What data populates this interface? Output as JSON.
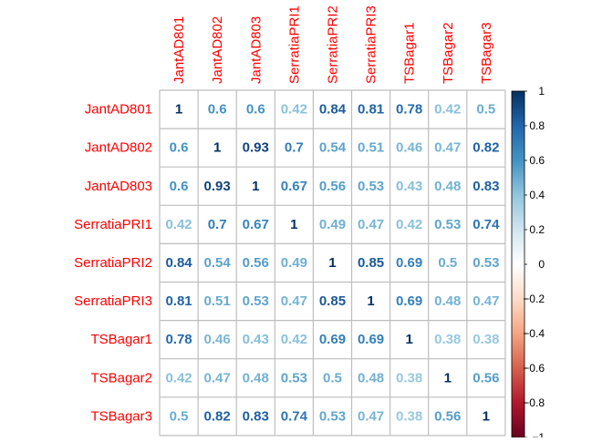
{
  "chart_data": {
    "type": "heatmap",
    "title": "",
    "variables": [
      "JantAD801",
      "JantAD802",
      "JantAD803",
      "SerratiaPRI1",
      "SerratiaPRI2",
      "SerratiaPRI3",
      "TSBagar1",
      "TSBagar2",
      "TSBagar3"
    ],
    "values": [
      [
        1,
        0.6,
        0.6,
        0.42,
        0.84,
        0.81,
        0.78,
        0.42,
        0.5
      ],
      [
        0.6,
        1,
        0.93,
        0.7,
        0.54,
        0.51,
        0.46,
        0.47,
        0.82
      ],
      [
        0.6,
        0.93,
        1,
        0.67,
        0.56,
        0.53,
        0.43,
        0.48,
        0.83
      ],
      [
        0.42,
        0.7,
        0.67,
        1,
        0.49,
        0.47,
        0.42,
        0.53,
        0.74
      ],
      [
        0.84,
        0.54,
        0.56,
        0.49,
        1,
        0.85,
        0.69,
        0.5,
        0.53
      ],
      [
        0.81,
        0.51,
        0.53,
        0.47,
        0.85,
        1,
        0.69,
        0.48,
        0.47
      ],
      [
        0.78,
        0.46,
        0.43,
        0.42,
        0.69,
        0.69,
        1,
        0.38,
        0.38
      ],
      [
        0.42,
        0.47,
        0.48,
        0.53,
        0.5,
        0.48,
        0.38,
        1,
        0.56
      ],
      [
        0.5,
        0.82,
        0.83,
        0.74,
        0.53,
        0.47,
        0.38,
        0.56,
        1
      ]
    ],
    "color_scale": {
      "range": [
        -1,
        1
      ],
      "ticks": [
        "1",
        "0.8",
        "0.6",
        "0.4",
        "0.2",
        "0",
        "−0.2",
        "−0.4",
        "−0.6",
        "−0.8",
        "−1"
      ],
      "stops": [
        "#67001F",
        "#B2182B",
        "#D6604D",
        "#F4A582",
        "#FDDBC7",
        "#FFFFFF",
        "#D1E5F0",
        "#92C5DE",
        "#4393C3",
        "#2166AC",
        "#053061"
      ]
    },
    "label_color": "#FF0000",
    "grid_color": "#BEBEBE",
    "legend_position": "right"
  }
}
